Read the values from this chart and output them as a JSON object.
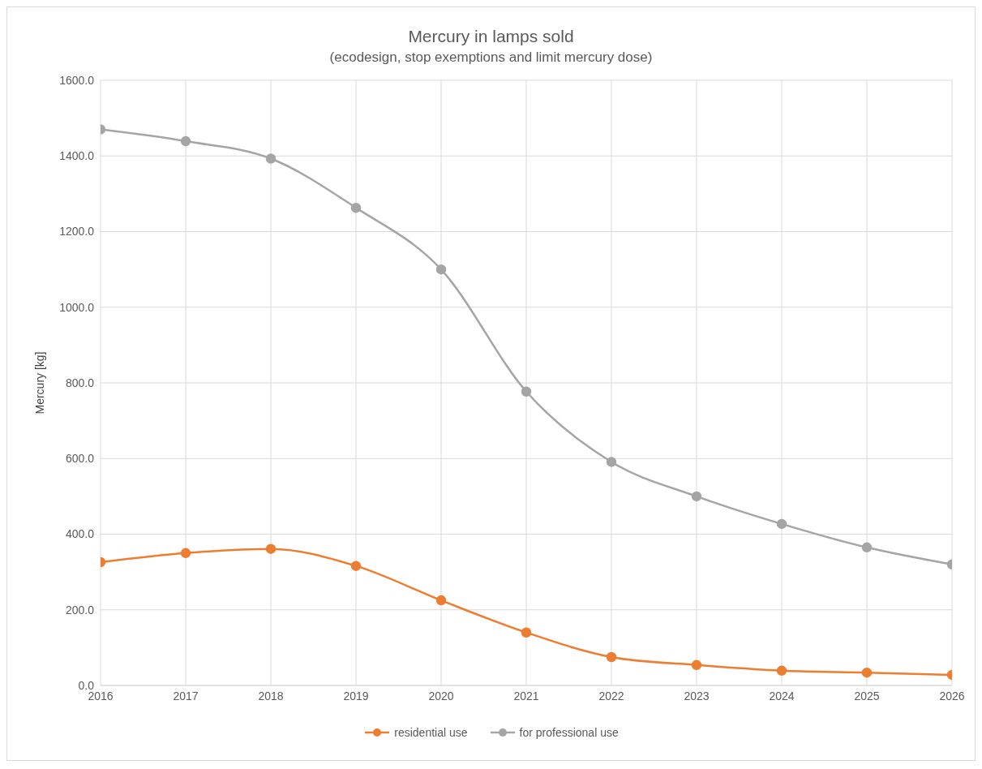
{
  "chart_data": {
    "type": "line",
    "title": "Mercury in lamps sold",
    "subtitle": "(ecodesign, stop exemptions and limit mercury dose)",
    "ylabel": "Mercury [kg]",
    "x": [
      2016,
      2017,
      2018,
      2019,
      2020,
      2021,
      2022,
      2023,
      2024,
      2025,
      2026
    ],
    "xlim": [
      2016,
      2026
    ],
    "xticks": [
      2016,
      2017,
      2018,
      2019,
      2020,
      2021,
      2022,
      2023,
      2024,
      2025,
      2026
    ],
    "ylim": [
      0,
      1600
    ],
    "yticks": [
      {
        "value": 0,
        "label": "0.0"
      },
      {
        "value": 200,
        "label": "200.0"
      },
      {
        "value": 400,
        "label": "400.0"
      },
      {
        "value": 600,
        "label": "600.0"
      },
      {
        "value": 800,
        "label": "800.0"
      },
      {
        "value": 1000,
        "label": "1000.0"
      },
      {
        "value": 1200,
        "label": "1200.0"
      },
      {
        "value": 1400,
        "label": "1400.0"
      },
      {
        "value": 1600,
        "label": "1600.0"
      }
    ],
    "series": [
      {
        "name": "residential use",
        "color": "#ed7d31",
        "values": [
          326,
          350,
          361,
          316,
          225,
          140,
          75,
          54,
          39,
          34,
          28
        ]
      },
      {
        "name": "for professional use",
        "color": "#a5a5a5",
        "values": [
          1470,
          1439,
          1393,
          1263,
          1100,
          777,
          591,
          500,
          427,
          365,
          320
        ]
      }
    ],
    "grid": true,
    "legend": "bottom",
    "marker": "circle",
    "line_style": "solid"
  }
}
